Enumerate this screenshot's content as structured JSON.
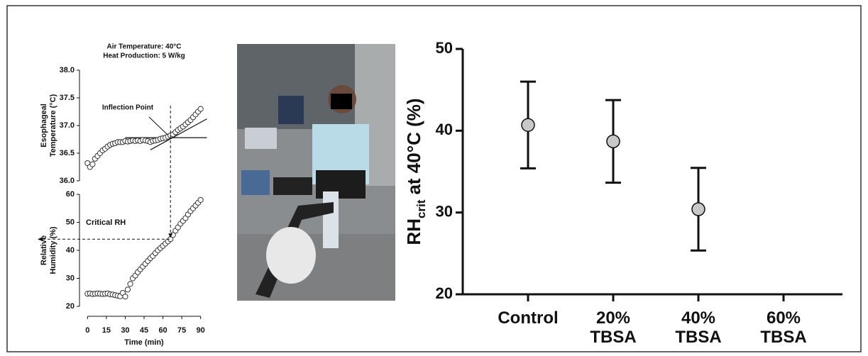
{
  "chart_data": [
    {
      "type": "scatter",
      "title_lines": [
        "Air Temperature: 40°C",
        "Heat Production: 5 W/kg"
      ],
      "ylabel_lines": [
        "Esophageal",
        "Temperature (°C)"
      ],
      "annotation": "Inflection Point",
      "inflection_x": 66,
      "fit_lines": [
        {
          "x": [
            30,
            95
          ],
          "y": [
            36.78,
            36.78
          ]
        },
        {
          "x": [
            50,
            95
          ],
          "y": [
            36.56,
            37.12
          ]
        }
      ],
      "x": [
        0,
        2,
        4,
        6,
        8,
        10,
        12,
        14,
        16,
        18,
        20,
        22,
        24,
        26,
        28,
        30,
        32,
        34,
        36,
        38,
        40,
        42,
        44,
        46,
        48,
        50,
        52,
        54,
        56,
        58,
        60,
        62,
        64,
        66,
        68,
        70,
        72,
        74,
        76,
        78,
        80,
        82,
        84,
        86,
        88,
        90
      ],
      "y": [
        36.32,
        36.25,
        36.3,
        36.4,
        36.45,
        36.5,
        36.55,
        36.58,
        36.62,
        36.65,
        36.67,
        36.68,
        36.7,
        36.7,
        36.7,
        36.72,
        36.71,
        36.72,
        36.73,
        36.72,
        36.73,
        36.72,
        36.74,
        36.73,
        36.72,
        36.7,
        36.72,
        36.73,
        36.74,
        36.76,
        36.77,
        36.78,
        36.8,
        36.82,
        36.84,
        36.88,
        36.92,
        36.95,
        36.98,
        37.02,
        37.06,
        37.1,
        37.15,
        37.2,
        37.25,
        37.3
      ],
      "xlim": [
        -3,
        93
      ],
      "ylim": [
        36,
        38
      ],
      "yticks": [
        {
          "value": 36,
          "label": "36.0"
        },
        36.5,
        {
          "value": 37,
          "label": "37.0"
        },
        37.5,
        {
          "value": 38,
          "label": "38.0"
        }
      ]
    },
    {
      "type": "scatter",
      "ylabel_lines": [
        "Relative",
        "Humidity (%)"
      ],
      "xlabel": "Time (min)",
      "annotation": "Critical RH",
      "critical_y": 44,
      "x": [
        0,
        2,
        4,
        6,
        8,
        10,
        12,
        14,
        16,
        18,
        20,
        22,
        24,
        26,
        28,
        30,
        32,
        34,
        36,
        38,
        40,
        42,
        44,
        46,
        48,
        50,
        52,
        54,
        56,
        58,
        60,
        62,
        64,
        66,
        68,
        70,
        72,
        74,
        76,
        78,
        80,
        82,
        84,
        86,
        88,
        90
      ],
      "y": [
        24.5,
        24.6,
        24.4,
        24.5,
        24.6,
        24.5,
        24.4,
        24.5,
        24.6,
        24.3,
        24.2,
        24,
        23.8,
        23.6,
        24.8,
        23.5,
        26,
        28,
        30,
        31,
        32.2,
        33.2,
        34.2,
        35.2,
        36.2,
        37.2,
        38,
        39,
        40,
        40.8,
        41.6,
        42.4,
        43.2,
        44,
        45.5,
        47,
        48.2,
        49.5,
        50.5,
        51.5,
        52.8,
        54,
        55,
        56,
        57,
        58
      ],
      "xlim": [
        -3,
        93
      ],
      "xticks": [
        0,
        15,
        30,
        45,
        60,
        75,
        90
      ],
      "ylim": [
        20,
        60
      ],
      "yticks": [
        20,
        30,
        40,
        50,
        60
      ]
    },
    {
      "type": "errorbar",
      "ylabel_parts": [
        "RH",
        "crit",
        "at 40°C (%)"
      ],
      "categories": [
        "Control",
        "20% TBSA",
        "40% TBSA",
        "60% TBSA"
      ],
      "values": [
        40.7,
        38.7,
        30.4,
        null
      ],
      "errors": [
        5.3,
        5.05,
        5.05,
        null
      ],
      "marker_color": "#c8c8c8",
      "ylim": [
        20,
        50
      ],
      "yticks": [
        20,
        30,
        40,
        50
      ]
    }
  ]
}
